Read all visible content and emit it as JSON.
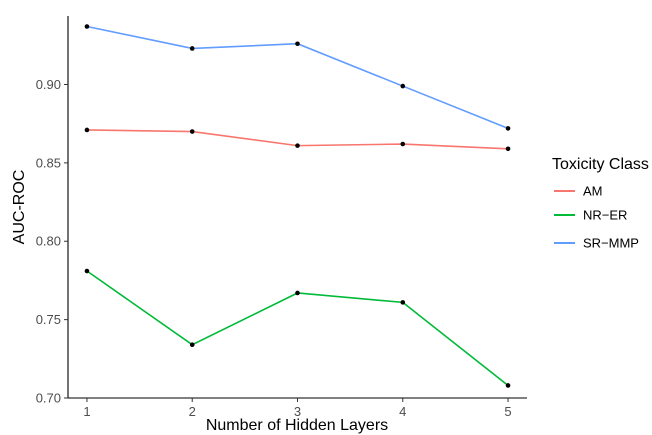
{
  "chart_data": {
    "type": "line",
    "xlabel": "Number of Hidden Layers",
    "ylabel": "AUC-ROC",
    "x": [
      1,
      2,
      3,
      4,
      5
    ],
    "xlim": [
      0.82,
      5.18
    ],
    "ylim": [
      0.7,
      0.9437
    ],
    "yticks": [
      0.7,
      0.75,
      0.8,
      0.85,
      0.9
    ],
    "ytick_labels": [
      "0.70",
      "0.75",
      "0.80",
      "0.85",
      "0.90"
    ],
    "xtick_labels": [
      "1",
      "2",
      "3",
      "4",
      "5"
    ],
    "grid": false,
    "legend": {
      "title": "Toxicity Class",
      "placement": "right"
    },
    "series": [
      {
        "name": "AM",
        "color": "#F8766D",
        "values": [
          0.871,
          0.87,
          0.861,
          0.862,
          0.859
        ]
      },
      {
        "name": "NR−ER",
        "color": "#00BA38",
        "values": [
          0.781,
          0.734,
          0.767,
          0.761,
          0.708
        ]
      },
      {
        "name": "SR−MMP",
        "color": "#619CFF",
        "values": [
          0.937,
          0.923,
          0.926,
          0.899,
          0.872
        ]
      }
    ]
  }
}
